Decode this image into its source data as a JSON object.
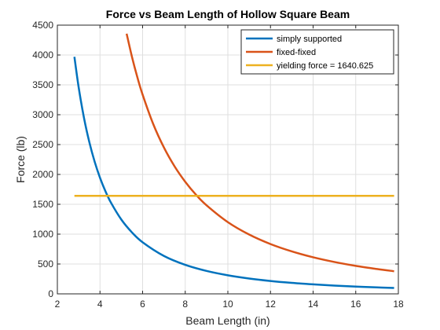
{
  "chart_data": {
    "type": "line",
    "title": "Force vs Beam Length of Hollow Square Beam",
    "xlabel": "Beam Length (in)",
    "ylabel": "Force (lb)",
    "xlim": [
      2,
      18
    ],
    "ylim": [
      0,
      4500
    ],
    "xticks": [
      2,
      4,
      6,
      8,
      10,
      12,
      14,
      16,
      18
    ],
    "yticks": [
      0,
      500,
      1000,
      1500,
      2000,
      2500,
      3000,
      3500,
      4000,
      4500
    ],
    "grid": true,
    "legend_position": "top-right",
    "series": [
      {
        "name": "simply supported",
        "color": "#0072BD",
        "x": [
          2.8,
          3.0,
          3.25,
          3.5,
          3.75,
          4.0,
          4.25,
          4.5,
          5.0,
          5.5,
          6.0,
          7.0,
          8.0,
          9.0,
          10.0,
          11.0,
          12.0,
          13.0,
          14.0,
          15.0,
          16.0,
          17.0,
          17.8
        ],
        "y": [
          3970,
          3458,
          2946,
          2541,
          2213,
          1945,
          1723,
          1537,
          1245,
          1029,
          864,
          635,
          486,
          384,
          311,
          257,
          216,
          184,
          159,
          138,
          122,
          108,
          98
        ]
      },
      {
        "name": "fixed-fixed",
        "color": "#D95319",
        "x": [
          5.25,
          5.5,
          5.75,
          6.0,
          6.5,
          7.0,
          7.5,
          8.0,
          8.5,
          9.0,
          10.0,
          11.0,
          12.0,
          13.0,
          14.0,
          15.0,
          16.0,
          17.0,
          17.8
        ],
        "y": [
          4357,
          3970,
          3632,
          3336,
          2842,
          2451,
          2135,
          1877,
          1662,
          1483,
          1201,
          993,
          834,
          711,
          613,
          534,
          469,
          416,
          379
        ]
      },
      {
        "name": "yielding force = 1640.625",
        "color": "#EDB120",
        "x": [
          2.8,
          17.8
        ],
        "y": [
          1640.625,
          1640.625
        ]
      }
    ]
  }
}
